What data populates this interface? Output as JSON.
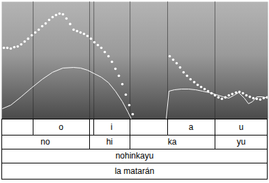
{
  "chart_data": {
    "type": "spectrogram",
    "xlim": [
      0,
      100
    ],
    "ylim": [
      0,
      100
    ],
    "tick_labels": false,
    "series": [
      {
        "type": "scatter",
        "color": "#ffffff",
        "marker": "dot",
        "x": [
          0.8,
          2.1,
          3.4,
          4.7,
          6.0,
          7.3,
          8.6,
          9.9,
          11.3,
          12.6,
          13.9,
          15.2,
          16.5,
          17.8,
          19.1,
          20.4,
          21.7,
          23.0,
          24.3,
          25.7,
          27.0,
          28.3,
          29.6,
          30.9,
          32.2,
          33.5,
          34.8,
          36.1,
          37.4,
          38.7,
          40.1,
          41.4,
          42.7,
          44.0,
          45.3,
          46.6,
          47.9,
          49.2,
          63.1,
          64.4,
          65.7,
          67.0,
          68.3,
          69.6,
          70.9,
          72.3,
          73.6,
          74.9,
          76.2,
          77.5,
          78.8,
          80.1,
          81.4,
          82.7,
          84.0,
          85.3,
          86.6,
          88.0,
          89.3,
          90.6,
          91.9,
          93.2,
          94.5,
          95.8,
          97.1,
          98.4,
          99.7
        ],
        "values": [
          60.7,
          60.7,
          60.1,
          61.3,
          61.9,
          63.7,
          66.1,
          68.5,
          71.4,
          73.8,
          76.2,
          79.2,
          81.5,
          84.5,
          86.9,
          88.7,
          89.9,
          89.3,
          85.7,
          81.0,
          76.2,
          75.0,
          73.8,
          72.6,
          70.8,
          68.5,
          65.5,
          63.1,
          60.7,
          57.1,
          53.6,
          48.8,
          42.9,
          36.9,
          29.8,
          20.8,
          11.9,
          4.2,
          53.6,
          50.6,
          47.6,
          44.0,
          39.9,
          36.9,
          33.9,
          31.5,
          29.2,
          27.4,
          25.6,
          23.8,
          22.0,
          20.2,
          18.5,
          17.3,
          18.5,
          20.2,
          21.4,
          22.6,
          23.2,
          22.0,
          20.2,
          19.0,
          17.9,
          17.3,
          16.7,
          17.9,
          18.5
        ]
      },
      {
        "type": "line",
        "color": "#ffffff",
        "line_style": "solid",
        "x": [
          0.3,
          3.4,
          7.3,
          11.3,
          15.2,
          19.1,
          23.0,
          27.0,
          29.6,
          32.2,
          34.8,
          37.4,
          40.1,
          42.7,
          45.3,
          47.4,
          48.7,
          null,
          61.8,
          62.8,
          64.9,
          67.5,
          70.2,
          72.8,
          75.4,
          78.0,
          80.6,
          83.2,
          85.3,
          87.2,
          89.0,
          91.1,
          92.7,
          94.2,
          95.8,
          97.9,
          100.0
        ],
        "values": [
          8.9,
          11.9,
          19.0,
          26.8,
          33.9,
          39.9,
          43.5,
          44.0,
          43.5,
          41.7,
          38.7,
          35.7,
          31.0,
          23.8,
          14.9,
          6.0,
          0,
          null,
          0,
          23.8,
          25.0,
          25.6,
          25.6,
          25.0,
          23.8,
          22.6,
          20.8,
          19.0,
          17.9,
          20.2,
          22.6,
          17.9,
          13.1,
          14.9,
          19.0,
          19.0,
          17.9
        ]
      }
    ],
    "tiers": [
      {
        "intervals": [
          {
            "start": 11.8,
            "end": 33.0,
            "label": "o"
          },
          {
            "start": 34.6,
            "end": 48.2,
            "label": "i"
          },
          {
            "start": 62.3,
            "end": 80.1,
            "label": "a"
          },
          {
            "start": 80.1,
            "end": 100,
            "label": "u"
          }
        ]
      },
      {
        "intervals": [
          {
            "start": 0,
            "end": 33.0,
            "label": "no"
          },
          {
            "start": 33.0,
            "end": 48.2,
            "label": "hi"
          },
          {
            "start": 48.2,
            "end": 80.1,
            "label": "ka"
          },
          {
            "start": 80.1,
            "end": 100,
            "label": "yu"
          }
        ]
      },
      {
        "intervals": [
          {
            "start": 0,
            "end": 100,
            "label": "nohinkayu"
          }
        ]
      },
      {
        "intervals": [
          {
            "start": 0,
            "end": 100,
            "label": "la matarán"
          }
        ]
      }
    ]
  }
}
